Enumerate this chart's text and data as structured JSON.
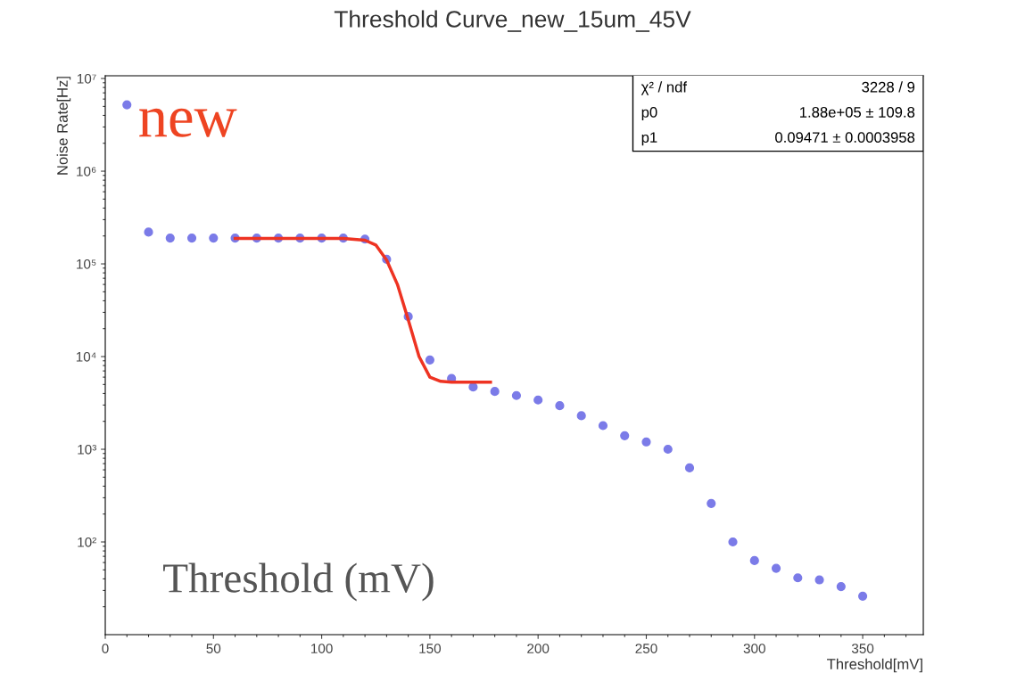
{
  "chart_data": {
    "type": "scatter",
    "title": "Threshold Curve_new_15um_45V",
    "xlabel": "Threshold[mV]",
    "ylabel": "Noise Rate[Hz]",
    "log": "y",
    "grid": false,
    "legend": false,
    "marker": "circle",
    "xlim": [
      0,
      378
    ],
    "xticks": [
      0,
      50,
      100,
      150,
      200,
      250,
      300,
      350
    ],
    "ylim": [
      10,
      10700000
    ],
    "yticks": [
      {
        "value": 100,
        "label": "10²"
      },
      {
        "value": 1000,
        "label": "10³"
      },
      {
        "value": 10000,
        "label": "10⁴"
      },
      {
        "value": 100000,
        "label": "10⁵"
      },
      {
        "value": 1000000,
        "label": "10⁶"
      },
      {
        "value": 10000000,
        "label": "10⁷"
      }
    ],
    "series": [
      {
        "color": "#7b7be8",
        "x": [
          10,
          20,
          30,
          40,
          50,
          60,
          70,
          80,
          90,
          100,
          110,
          120,
          130,
          140,
          150,
          160,
          170,
          180,
          190,
          200,
          210,
          220,
          230,
          240,
          250,
          260,
          270,
          280,
          290,
          300,
          310,
          320,
          330,
          340,
          350
        ],
        "values": [
          5200000,
          220000,
          190000,
          190000,
          190000,
          190000,
          190000,
          190000,
          190000,
          190000,
          190000,
          185000,
          112000,
          27000,
          9200,
          5800,
          4700,
          4200,
          3800,
          3400,
          2950,
          2300,
          1800,
          1400,
          1200,
          1000,
          630,
          260,
          100,
          63,
          52,
          41,
          39,
          33,
          26
        ]
      },
      {
        "type": "line",
        "color": "#ee3322",
        "marker": "none",
        "x": [
          60,
          110,
          120,
          125,
          130,
          135,
          140,
          145,
          150,
          155,
          160,
          178
        ],
        "values": [
          188000,
          188000,
          180000,
          160000,
          110000,
          60000,
          25000,
          10000,
          6000,
          5400,
          5300,
          5300
        ]
      }
    ],
    "annotations": [
      "new",
      "Threshold (mV)",
      "χ² / ndf",
      "3228 / 9",
      "p0",
      "1.88e+05 ± 109.8",
      "p1",
      "0.09471 ± 0.0003958"
    ]
  }
}
